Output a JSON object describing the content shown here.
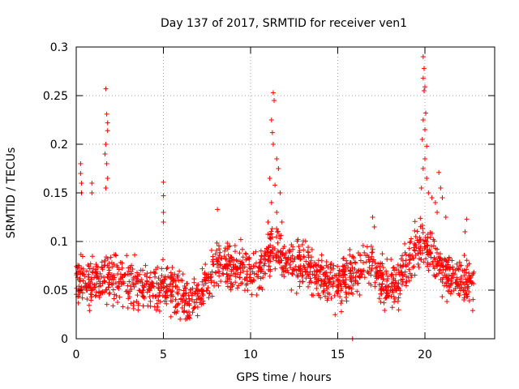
{
  "chart_data": {
    "type": "scatter",
    "title": "Day 137 of 2017, SRMTID for receiver ven1",
    "xlabel": "GPS time / hours",
    "ylabel": "SRMTID / TECUs",
    "xlim": [
      0,
      24
    ],
    "ylim": [
      0,
      0.3
    ],
    "xticks": [
      "0",
      "5",
      "10",
      "15",
      "20"
    ],
    "xtick_values": [
      0,
      5,
      10,
      15,
      20
    ],
    "yticks": [
      "0",
      "0.05",
      "0.1",
      "0.15",
      "0.2",
      "0.25",
      "0.3"
    ],
    "ytick_values": [
      0,
      0.05,
      0.1,
      0.15,
      0.2,
      0.25,
      0.3
    ],
    "grid": true,
    "marker": "+",
    "color": "#ff0000",
    "series": [
      {
        "name": "SRMTID",
        "profile": [
          {
            "x": 0.0,
            "y": 0.06
          },
          {
            "x": 0.5,
            "y": 0.062
          },
          {
            "x": 1.0,
            "y": 0.058
          },
          {
            "x": 1.5,
            "y": 0.063
          },
          {
            "x": 2.0,
            "y": 0.065
          },
          {
            "x": 2.5,
            "y": 0.06
          },
          {
            "x": 3.0,
            "y": 0.058
          },
          {
            "x": 3.5,
            "y": 0.055
          },
          {
            "x": 4.0,
            "y": 0.052
          },
          {
            "x": 4.5,
            "y": 0.05
          },
          {
            "x": 5.0,
            "y": 0.055
          },
          {
            "x": 5.5,
            "y": 0.05
          },
          {
            "x": 6.0,
            "y": 0.045
          },
          {
            "x": 6.5,
            "y": 0.04
          },
          {
            "x": 7.0,
            "y": 0.045
          },
          {
            "x": 7.5,
            "y": 0.06
          },
          {
            "x": 8.0,
            "y": 0.075
          },
          {
            "x": 8.5,
            "y": 0.078
          },
          {
            "x": 9.0,
            "y": 0.072
          },
          {
            "x": 9.5,
            "y": 0.07
          },
          {
            "x": 10.0,
            "y": 0.068
          },
          {
            "x": 10.5,
            "y": 0.072
          },
          {
            "x": 11.0,
            "y": 0.09
          },
          {
            "x": 11.5,
            "y": 0.095
          },
          {
            "x": 12.0,
            "y": 0.08
          },
          {
            "x": 12.5,
            "y": 0.078
          },
          {
            "x": 13.0,
            "y": 0.075
          },
          {
            "x": 13.5,
            "y": 0.068
          },
          {
            "x": 14.0,
            "y": 0.065
          },
          {
            "x": 14.5,
            "y": 0.062
          },
          {
            "x": 15.0,
            "y": 0.058
          },
          {
            "x": 15.5,
            "y": 0.06
          },
          {
            "x": 16.0,
            "y": 0.068
          },
          {
            "x": 16.5,
            "y": 0.075
          },
          {
            "x": 17.0,
            "y": 0.072
          },
          {
            "x": 17.5,
            "y": 0.06
          },
          {
            "x": 18.0,
            "y": 0.055
          },
          {
            "x": 18.5,
            "y": 0.058
          },
          {
            "x": 19.0,
            "y": 0.075
          },
          {
            "x": 19.5,
            "y": 0.092
          },
          {
            "x": 20.0,
            "y": 0.098
          },
          {
            "x": 20.5,
            "y": 0.085
          },
          {
            "x": 21.0,
            "y": 0.07
          },
          {
            "x": 21.5,
            "y": 0.065
          },
          {
            "x": 22.0,
            "y": 0.062
          },
          {
            "x": 22.5,
            "y": 0.055
          },
          {
            "x": 22.8,
            "y": 0.058
          }
        ],
        "spikes": [
          {
            "x": 0.25,
            "y": 0.18
          },
          {
            "x": 0.25,
            "y": 0.17
          },
          {
            "x": 0.3,
            "y": 0.16
          },
          {
            "x": 0.3,
            "y": 0.15
          },
          {
            "x": 0.9,
            "y": 0.16
          },
          {
            "x": 0.9,
            "y": 0.15
          },
          {
            "x": 1.7,
            "y": 0.257
          },
          {
            "x": 1.75,
            "y": 0.231
          },
          {
            "x": 1.8,
            "y": 0.222
          },
          {
            "x": 1.8,
            "y": 0.214
          },
          {
            "x": 1.7,
            "y": 0.2
          },
          {
            "x": 1.65,
            "y": 0.19
          },
          {
            "x": 1.75,
            "y": 0.18
          },
          {
            "x": 1.8,
            "y": 0.165
          },
          {
            "x": 1.7,
            "y": 0.155
          },
          {
            "x": 5.0,
            "y": 0.161
          },
          {
            "x": 5.0,
            "y": 0.147
          },
          {
            "x": 5.0,
            "y": 0.13
          },
          {
            "x": 5.0,
            "y": 0.12
          },
          {
            "x": 8.1,
            "y": 0.133
          },
          {
            "x": 11.3,
            "y": 0.253
          },
          {
            "x": 11.35,
            "y": 0.245
          },
          {
            "x": 11.2,
            "y": 0.225
          },
          {
            "x": 11.25,
            "y": 0.212
          },
          {
            "x": 11.3,
            "y": 0.2
          },
          {
            "x": 11.5,
            "y": 0.185
          },
          {
            "x": 11.6,
            "y": 0.175
          },
          {
            "x": 11.1,
            "y": 0.165
          },
          {
            "x": 11.4,
            "y": 0.158
          },
          {
            "x": 11.7,
            "y": 0.15
          },
          {
            "x": 11.2,
            "y": 0.14
          },
          {
            "x": 11.5,
            "y": 0.13
          },
          {
            "x": 11.8,
            "y": 0.12
          },
          {
            "x": 11.0,
            "y": 0.12
          },
          {
            "x": 15.85,
            "y": 0.0
          },
          {
            "x": 17.0,
            "y": 0.125
          },
          {
            "x": 17.1,
            "y": 0.115
          },
          {
            "x": 19.9,
            "y": 0.29
          },
          {
            "x": 19.95,
            "y": 0.278
          },
          {
            "x": 19.9,
            "y": 0.268
          },
          {
            "x": 20.0,
            "y": 0.259
          },
          {
            "x": 19.95,
            "y": 0.255
          },
          {
            "x": 20.05,
            "y": 0.232
          },
          {
            "x": 19.9,
            "y": 0.225
          },
          {
            "x": 20.0,
            "y": 0.215
          },
          {
            "x": 19.85,
            "y": 0.205
          },
          {
            "x": 20.1,
            "y": 0.198
          },
          {
            "x": 20.0,
            "y": 0.185
          },
          {
            "x": 19.9,
            "y": 0.175
          },
          {
            "x": 20.1,
            "y": 0.165
          },
          {
            "x": 19.8,
            "y": 0.155
          },
          {
            "x": 20.2,
            "y": 0.15
          },
          {
            "x": 20.4,
            "y": 0.145
          },
          {
            "x": 20.6,
            "y": 0.14
          },
          {
            "x": 20.8,
            "y": 0.171
          },
          {
            "x": 20.9,
            "y": 0.155
          },
          {
            "x": 21.0,
            "y": 0.145
          },
          {
            "x": 20.7,
            "y": 0.13
          },
          {
            "x": 21.2,
            "y": 0.125
          },
          {
            "x": 22.4,
            "y": 0.123
          },
          {
            "x": 22.3,
            "y": 0.11
          }
        ],
        "x_range": [
          0.0,
          22.8
        ],
        "y_min": 0.02,
        "density_per_hour": 70,
        "spread": 0.022
      }
    ]
  }
}
